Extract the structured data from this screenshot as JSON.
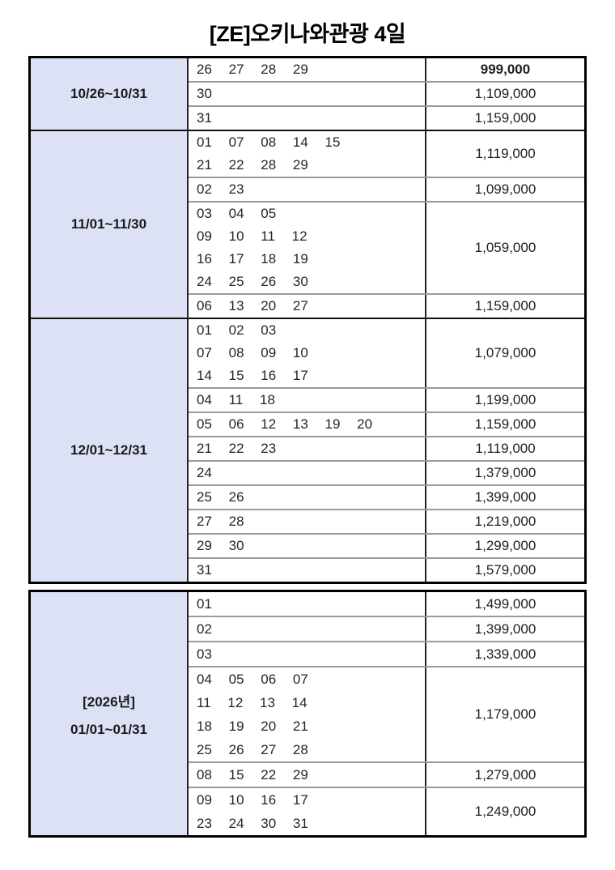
{
  "title": "[ZE]오키나와관광 4일",
  "colors": {
    "label_background": "#dce1f5",
    "outer_border": "#000000",
    "group_separator": "#111111",
    "row_separator": "#9a9a9a",
    "text": "#1f1f1f"
  },
  "t1": {
    "groups": [
      {
        "label": "10/26~10/31",
        "rows": [
          {
            "dates": "26 27 28 29",
            "price": "999,000",
            "bold": true
          },
          {
            "dates": "30",
            "price": "1,109,000"
          },
          {
            "dates": "31",
            "price": "1,159,000"
          }
        ]
      },
      {
        "label": "11/01~11/30",
        "rows": [
          {
            "dates": "01 07 08 14 15\n21 22 28 29",
            "price": "1,119,000"
          },
          {
            "dates": "02 23",
            "price": "1,099,000"
          },
          {
            "dates": "03 04 05\n09 10 11 12\n16 17 18 19\n24 25 26 30",
            "price": "1,059,000"
          },
          {
            "dates": "06 13 20 27",
            "price": "1,159,000"
          }
        ]
      },
      {
        "label": "12/01~12/31",
        "rows": [
          {
            "dates": "01 02 03\n07 08 09 10\n14 15 16 17",
            "price": "1,079,000"
          },
          {
            "dates": "04 11 18",
            "price": "1,199,000"
          },
          {
            "dates": "05 06 12 13 19 20",
            "price": "1,159,000"
          },
          {
            "dates": "21 22 23",
            "price": "1,119,000"
          },
          {
            "dates": "24",
            "price": "1,379,000"
          },
          {
            "dates": "25 26",
            "price": "1,399,000"
          },
          {
            "dates": "27 28",
            "price": "1,219,000"
          },
          {
            "dates": "29 30",
            "price": "1,299,000"
          },
          {
            "dates": "31",
            "price": "1,579,000"
          }
        ]
      }
    ]
  },
  "t2": {
    "groups": [
      {
        "label_line1": "[2026년]",
        "label_line2": "01/01~01/31",
        "rows": [
          {
            "dates": "01",
            "price": "1,499,000"
          },
          {
            "dates": "02",
            "price": "1,399,000"
          },
          {
            "dates": "03",
            "price": "1,339,000"
          },
          {
            "dates": "04 05 06 07\n11 12 13 14\n18 19 20 21\n25 26 27 28",
            "price": "1,179,000"
          },
          {
            "dates": "08 15 22 29",
            "price": "1,279,000"
          },
          {
            "dates": "09 10 16 17\n23 24 30 31",
            "price": "1,249,000"
          }
        ]
      }
    ]
  }
}
